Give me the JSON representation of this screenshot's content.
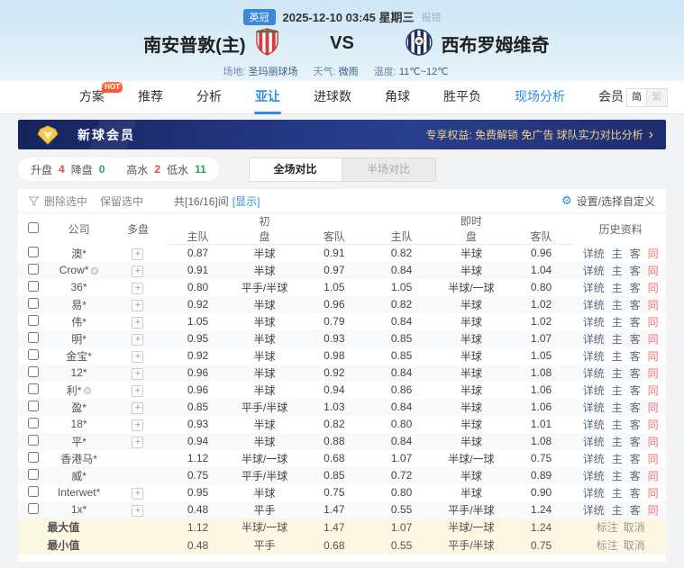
{
  "header": {
    "league": "英冠",
    "datetime": "2025-12-10 03:45 星期三",
    "report_link": "报错",
    "home_name": "南安普敦(主)",
    "vs": "VS",
    "away_name": "西布罗姆维奇",
    "venue_label": "场地:",
    "venue_value": "圣玛丽球场",
    "weather_label": "天气:",
    "weather_value": "微雨",
    "temp_label": "温度:",
    "temp_value": "11℃~12℃"
  },
  "nav": {
    "items": [
      {
        "label": "方案"
      },
      {
        "label": "推荐"
      },
      {
        "label": "分析"
      },
      {
        "label": "亚让"
      },
      {
        "label": "进球数"
      },
      {
        "label": "角球"
      },
      {
        "label": "胜平负"
      },
      {
        "label": "现场分析"
      },
      {
        "label": "会员"
      }
    ],
    "hot_badge": "HOT",
    "lang_simplified": "简",
    "lang_traditional": "繁"
  },
  "banner": {
    "title": "新球会员",
    "benefits": "专享权益: 免费解锁 免广告 球队实力对比分析",
    "arrow": "›"
  },
  "filters": {
    "up_label": "升盘",
    "up_value": "4",
    "down_label": "降盘",
    "down_value": "0",
    "high_label": "高水",
    "high_value": "2",
    "low_label": "低水",
    "low_value": "11",
    "tab_full": "全场对比",
    "tab_half": "半场对比"
  },
  "controls": {
    "delete_selected": "删除选中",
    "keep_selected": "保留选中",
    "count_text": "共[16/16]间",
    "show_link": "[显示]",
    "settings_label": "设置/选择自定义",
    "gear_glyph": "⚙"
  },
  "table": {
    "col_company": "公司",
    "col_multi": "多盘",
    "group_initial": "初",
    "group_initial_sub": "盘",
    "group_live": "即时",
    "group_live_sub": "盘",
    "col_home": "主队",
    "col_away": "客队",
    "col_history": "历史资料",
    "multi_symbol": "+",
    "history_links": [
      "详统",
      "主",
      "客",
      "同"
    ],
    "rows": [
      {
        "company": "澳*",
        "badge": false,
        "multi": true,
        "init": [
          "0.87",
          "半球",
          "0.91"
        ],
        "live": [
          "0.82",
          "半球",
          "0.96"
        ]
      },
      {
        "company": "Crow*",
        "badge": true,
        "multi": true,
        "init": [
          "0.91",
          "半球",
          "0.97"
        ],
        "live": [
          "0.84",
          "半球",
          "1.04"
        ]
      },
      {
        "company": "36*",
        "badge": false,
        "multi": true,
        "init": [
          "0.80",
          "平手/半球",
          "1.05"
        ],
        "live": [
          "1.05",
          "半球/一球",
          "0.80"
        ]
      },
      {
        "company": "易*",
        "badge": false,
        "multi": true,
        "init": [
          "0.92",
          "半球",
          "0.96"
        ],
        "live": [
          "0.82",
          "半球",
          "1.02"
        ]
      },
      {
        "company": "伟*",
        "badge": false,
        "multi": true,
        "init": [
          "1.05",
          "半球",
          "0.79"
        ],
        "live": [
          "0.84",
          "半球",
          "1.02"
        ]
      },
      {
        "company": "明*",
        "badge": false,
        "multi": true,
        "init": [
          "0.95",
          "半球",
          "0.93"
        ],
        "live": [
          "0.85",
          "半球",
          "1.07"
        ]
      },
      {
        "company": "金宝*",
        "badge": false,
        "multi": true,
        "init": [
          "0.92",
          "半球",
          "0.98"
        ],
        "live": [
          "0.85",
          "半球",
          "1.05"
        ]
      },
      {
        "company": "12*",
        "badge": false,
        "multi": true,
        "init": [
          "0.96",
          "半球",
          "0.92"
        ],
        "live": [
          "0.84",
          "半球",
          "1.08"
        ]
      },
      {
        "company": "利*",
        "badge": true,
        "multi": true,
        "init": [
          "0.96",
          "半球",
          "0.94"
        ],
        "live": [
          "0.86",
          "半球",
          "1.06"
        ]
      },
      {
        "company": "盈*",
        "badge": false,
        "multi": true,
        "init": [
          "0.85",
          "平手/半球",
          "1.03"
        ],
        "live": [
          "0.84",
          "半球",
          "1.06"
        ]
      },
      {
        "company": "18*",
        "badge": false,
        "multi": true,
        "init": [
          "0.93",
          "半球",
          "0.82"
        ],
        "live": [
          "0.80",
          "半球",
          "1.01"
        ]
      },
      {
        "company": "平*",
        "badge": false,
        "multi": true,
        "init": [
          "0.94",
          "半球",
          "0.88"
        ],
        "live": [
          "0.84",
          "半球",
          "1.08"
        ]
      },
      {
        "company": "香港马*",
        "badge": false,
        "multi": false,
        "init": [
          "1.12",
          "半球/一球",
          "0.68"
        ],
        "live": [
          "1.07",
          "半球/一球",
          "0.75"
        ]
      },
      {
        "company": "威*",
        "badge": false,
        "multi": false,
        "init": [
          "0.75",
          "平手/半球",
          "0.85"
        ],
        "live": [
          "0.72",
          "半球",
          "0.89"
        ]
      },
      {
        "company": "Interwet*",
        "badge": false,
        "multi": true,
        "init": [
          "0.95",
          "半球",
          "0.75"
        ],
        "live": [
          "0.80",
          "半球",
          "0.90"
        ]
      },
      {
        "company": "1x*",
        "badge": false,
        "multi": true,
        "init": [
          "0.48",
          "平手",
          "1.47"
        ],
        "live": [
          "0.55",
          "平手/半球",
          "1.24"
        ]
      }
    ],
    "summary": [
      {
        "label": "最大值",
        "init": [
          "1.12",
          "半球/一球",
          "1.47"
        ],
        "live": [
          "1.07",
          "半球/一球",
          "1.24"
        ],
        "links": [
          "标注",
          "取消"
        ]
      },
      {
        "label": "最小值",
        "init": [
          "0.48",
          "平手",
          "0.68"
        ],
        "live": [
          "0.55",
          "平手/半球",
          "0.75"
        ],
        "links": [
          "标注",
          "取消"
        ]
      }
    ]
  },
  "colors": {
    "accent_blue": "#2c8ce6",
    "up_red": "#e5483c",
    "down_green": "#27a35c",
    "banner_navy": "#23357f",
    "banner_gold": "#f0d48a",
    "history_red": "#f56c6c",
    "league_badge_blue": "#3c87d8"
  }
}
